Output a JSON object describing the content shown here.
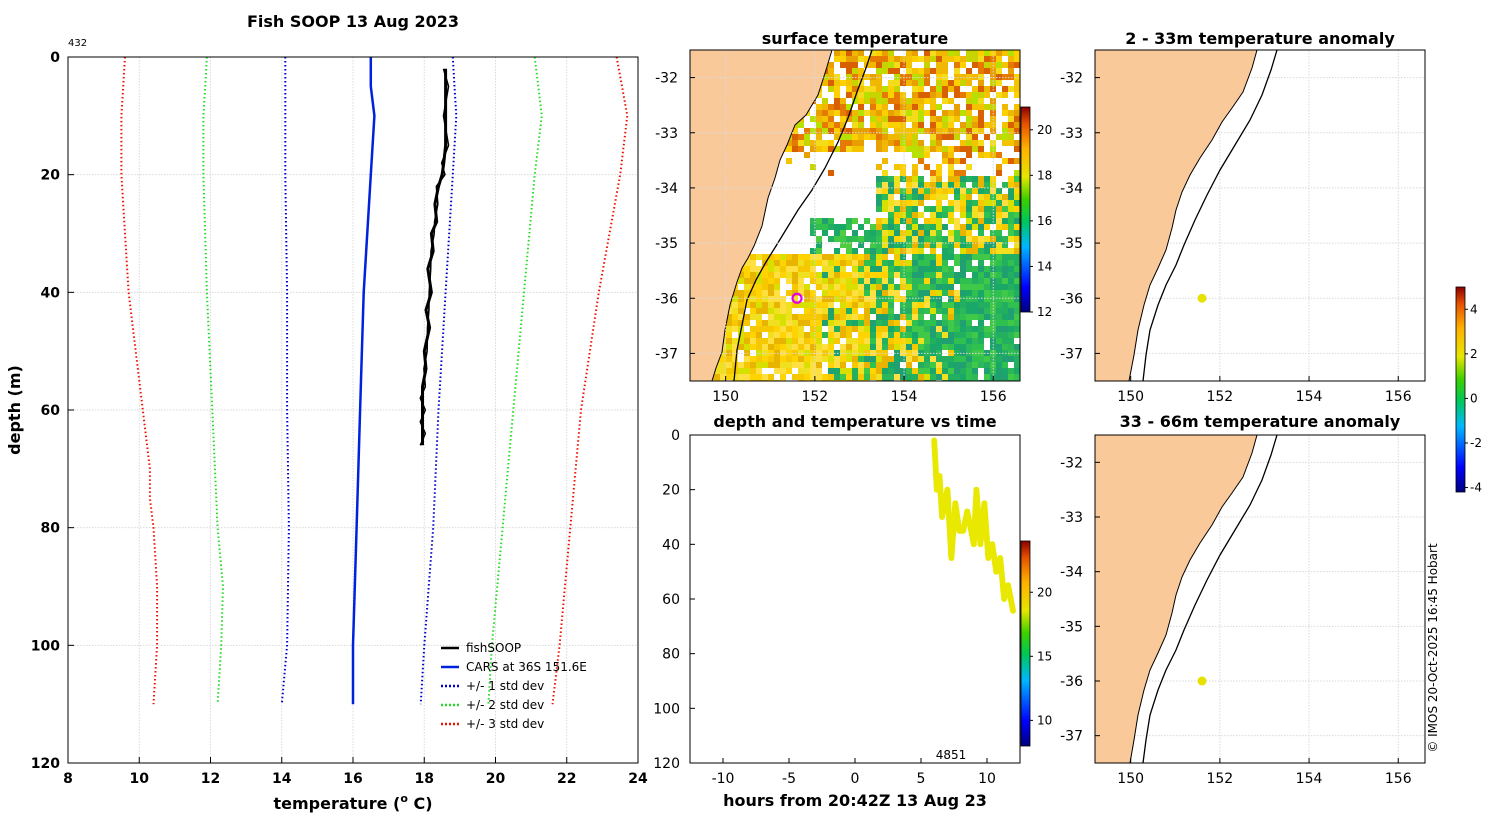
{
  "figure": {
    "credit": "© IMOS 20-Oct-2025 16:45 Hobart",
    "colors": {
      "land": "#f9c99a",
      "fish": "#000000",
      "cars": "#0022dd",
      "std1": "#0000cc",
      "std2": "#22dd22",
      "std3": "#ee1100",
      "marker": "#e600e6",
      "anom_point": "#e8e000",
      "sst_fill_warm": "#f5c000",
      "sst_fill_cool": "#22aa55"
    }
  },
  "chart_data": [
    {
      "id": "profile",
      "type": "line",
      "title": "Fish SOOP 13 Aug 2023",
      "annotation": "432",
      "xlabel": "temperature (o C)",
      "xlabel_main": "temperature (",
      "xlabel_sup": "o",
      "xlabel_end": " C)",
      "ylabel": "depth (m)",
      "xlim": [
        8,
        24
      ],
      "ylim": [
        0,
        120
      ],
      "xticks": [
        8,
        10,
        12,
        14,
        16,
        18,
        20,
        22,
        24
      ],
      "yticks": [
        0,
        20,
        40,
        60,
        80,
        100,
        120
      ],
      "series": [
        {
          "name": "fishSOOP",
          "style": "solid",
          "color": "#000000",
          "depth": [
            2,
            5,
            10,
            15,
            18,
            20,
            22,
            25,
            28,
            30,
            33,
            36,
            40,
            43,
            46,
            50,
            53,
            56,
            58,
            60,
            62,
            64,
            66
          ],
          "temp": [
            18.6,
            18.6,
            18.6,
            18.6,
            18.55,
            18.5,
            18.4,
            18.3,
            18.35,
            18.2,
            18.25,
            18.1,
            18.2,
            18.05,
            18.15,
            18.0,
            18.05,
            17.95,
            17.95,
            17.95,
            17.95,
            17.95,
            17.95
          ]
        },
        {
          "name": "CARS at 36S 151.6E",
          "style": "solid",
          "color": "#0022dd",
          "depth": [
            0,
            5,
            10,
            20,
            40,
            60,
            80,
            100,
            110
          ],
          "temp": [
            16.5,
            16.5,
            16.6,
            16.5,
            16.3,
            16.2,
            16.1,
            16.0,
            16.0
          ]
        },
        {
          "name": "+/- 1 std dev",
          "style": "dotted",
          "color": "#0000cc",
          "depth": [
            0,
            10,
            20,
            40,
            60,
            80,
            100,
            110,
            0,
            5,
            10,
            20,
            40,
            60,
            80,
            100,
            110
          ],
          "temp": [
            14.1,
            14.1,
            14.1,
            14.15,
            14.15,
            14.2,
            14.15,
            14.0,
            18.8,
            18.85,
            18.9,
            18.8,
            18.6,
            18.4,
            18.25,
            18.0,
            17.9
          ],
          "note": "two branches: lower (first 8) and upper (last 9)"
        },
        {
          "name": "+/- 2 std dev",
          "style": "dotted",
          "color": "#22dd22",
          "depth": [
            0,
            5,
            10,
            20,
            40,
            60,
            80,
            90,
            100,
            110,
            0,
            5,
            10,
            20,
            40,
            60,
            80,
            100,
            110
          ],
          "temp": [
            11.9,
            11.85,
            11.8,
            11.8,
            11.9,
            12.05,
            12.2,
            12.35,
            12.3,
            12.2,
            21.1,
            21.2,
            21.3,
            21.1,
            20.8,
            20.5,
            20.2,
            19.9,
            19.8
          ]
        },
        {
          "name": "+/- 3 std dev",
          "style": "dotted",
          "color": "#ee1100",
          "depth": [
            0,
            5,
            10,
            20,
            30,
            40,
            50,
            60,
            70,
            75,
            80,
            90,
            100,
            110,
            0,
            5,
            10,
            20,
            30,
            40,
            60,
            80,
            100,
            110
          ],
          "temp": [
            9.6,
            9.55,
            9.5,
            9.5,
            9.6,
            9.7,
            9.9,
            10.1,
            10.3,
            10.3,
            10.4,
            10.5,
            10.5,
            10.4,
            23.4,
            23.55,
            23.7,
            23.5,
            23.2,
            22.9,
            22.4,
            22.1,
            21.8,
            21.6
          ]
        }
      ],
      "legend": [
        "fishSOOP",
        "CARS at 36S 151.6E",
        "+/- 1 std dev",
        "+/- 2 std dev",
        "+/- 3 std dev"
      ],
      "legend_position": "bottom-right"
    },
    {
      "id": "sst",
      "type": "heatmap",
      "title": "surface temperature",
      "xlim": [
        149.2,
        156.6
      ],
      "ylim": [
        -37.5,
        -31.5
      ],
      "xticks": [
        150,
        152,
        154,
        156
      ],
      "yticks": [
        -32,
        -33,
        -34,
        -35,
        -36,
        -37
      ],
      "colorbar_ticks": [
        20,
        18,
        16,
        14,
        12
      ],
      "colorbar_range": [
        12,
        21
      ],
      "marker": {
        "lon": 151.6,
        "lat": -36.0
      }
    },
    {
      "id": "depth_time",
      "type": "scatter",
      "title": "depth and temperature vs time",
      "xlabel": "hours from 20:42Z 13 Aug 23",
      "xlim": [
        -12.5,
        12.5
      ],
      "ylim": [
        0,
        120
      ],
      "xticks": [
        -10,
        -5,
        0,
        5,
        10
      ],
      "yticks": [
        0,
        20,
        40,
        60,
        80,
        100,
        120
      ],
      "annotation": "4851",
      "colorbar_ticks": [
        20,
        15,
        10
      ],
      "colorbar_range": [
        8,
        24
      ],
      "hours": [
        6.0,
        6.2,
        6.4,
        6.6,
        7.0,
        7.3,
        7.6,
        7.9,
        8.2,
        8.5,
        8.8,
        9.0,
        9.2,
        9.5,
        9.8,
        10.1,
        10.4,
        10.7,
        11.0,
        11.3,
        11.6,
        12.0
      ],
      "depths": [
        2,
        20,
        15,
        30,
        20,
        45,
        25,
        35,
        35,
        28,
        35,
        40,
        20,
        40,
        25,
        45,
        40,
        50,
        45,
        60,
        55,
        65
      ],
      "point_color": "#e8e800"
    },
    {
      "id": "anom_top",
      "type": "scatter",
      "title": "2 - 33m temperature anomaly",
      "xlim": [
        149.2,
        156.6
      ],
      "ylim": [
        -37.5,
        -31.5
      ],
      "xticks": [
        150,
        152,
        154,
        156
      ],
      "yticks": [
        -32,
        -33,
        -34,
        -35,
        -36,
        -37
      ],
      "point": {
        "lon": 151.6,
        "lat": -36.0
      }
    },
    {
      "id": "anom_bottom",
      "type": "scatter",
      "title": "33 - 66m temperature anomaly",
      "xlim": [
        149.2,
        156.6
      ],
      "ylim": [
        -37.5,
        -31.5
      ],
      "xticks": [
        150,
        152,
        154,
        156
      ],
      "yticks": [
        -32,
        -33,
        -34,
        -35,
        -36,
        -37
      ],
      "point": {
        "lon": 151.6,
        "lat": -36.0
      }
    },
    {
      "id": "anom_colorbar",
      "type": "heatmap",
      "colorbar_ticks": [
        4,
        2,
        0,
        -2,
        -4
      ],
      "colorbar_range": [
        -4.2,
        5
      ]
    }
  ]
}
